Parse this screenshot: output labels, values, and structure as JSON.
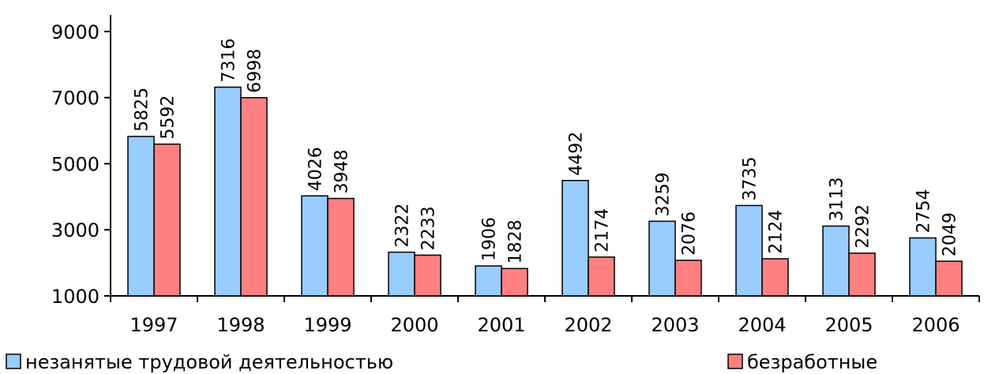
{
  "chart_data": {
    "type": "bar",
    "categories": [
      "1997",
      "1998",
      "1999",
      "2000",
      "2001",
      "2002",
      "2003",
      "2004",
      "2005",
      "2006"
    ],
    "series": [
      {
        "name": "незанятые трудовой деятельностью",
        "color": "#99ccff",
        "values": [
          5825,
          7316,
          4026,
          2322,
          1906,
          4492,
          3259,
          3735,
          3113,
          2754
        ]
      },
      {
        "name": "безработные",
        "color": "#ff8080",
        "values": [
          5592,
          6998,
          3948,
          2233,
          1828,
          2174,
          2076,
          2124,
          2292,
          2049
        ]
      }
    ],
    "ylim": [
      1000,
      9500
    ],
    "yticks": [
      1000,
      3000,
      5000,
      7000,
      9000
    ]
  }
}
